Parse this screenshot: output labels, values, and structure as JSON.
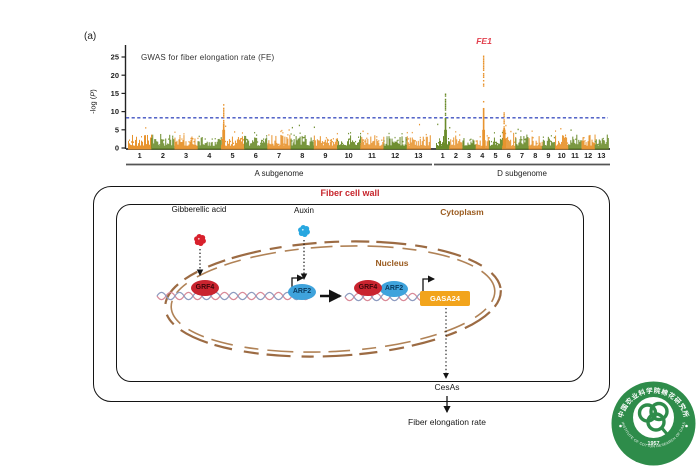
{
  "panel_label": "(a)",
  "chart_data": {
    "type": "scatter",
    "subtype": "manhattan",
    "title": "GWAS for fiber elongation rate (FE)",
    "ylabel": "-log (P)",
    "ylabel_parts": {
      "prefix": "-log (",
      "italic": "P",
      "suffix": ")"
    },
    "ylim": [
      0,
      27
    ],
    "yticks": [
      0,
      5,
      10,
      15,
      20,
      25
    ],
    "threshold_y": 8.3,
    "threshold_style": "dashed",
    "threshold_color": "#3F51C1",
    "point_colors_alternating": [
      "#E8942F",
      "#6A8B2A"
    ],
    "annotation_color": "#E2404E",
    "baseline_noise_max": 5,
    "groups": [
      {
        "label": "A subgenome",
        "chromosomes": [
          "1",
          "2",
          "3",
          "4",
          "5",
          "6",
          "7",
          "8",
          "9",
          "10",
          "11",
          "12",
          "13"
        ]
      },
      {
        "label": "D subgenome",
        "chromosomes": [
          "1",
          "2",
          "3",
          "4",
          "5",
          "6",
          "7",
          "8",
          "9",
          "10",
          "11",
          "12",
          "13"
        ]
      }
    ],
    "peaks": [
      {
        "group": "A subgenome",
        "chromosome": "5",
        "top_value": 12.3,
        "position_frac": 0.12,
        "label": ""
      },
      {
        "group": "D subgenome",
        "chromosome": "1",
        "top_value": 15.0,
        "position_frac": 0.72,
        "label": ""
      },
      {
        "group": "D subgenome",
        "chromosome": "4",
        "top_value": 25.5,
        "position_frac": 0.6,
        "label": "FE1"
      },
      {
        "group": "D subgenome",
        "chromosome": "6",
        "top_value": 10.0,
        "position_frac": 0.15,
        "label": ""
      }
    ]
  },
  "diagram": {
    "cell_wall_title": "Fiber cell wall",
    "cytoplasm_label": "Cytoplasm",
    "nucleus_label": "Nucleus",
    "gibberellic_acid_label": "Gibberellic acid",
    "auxin_label": "Auxin",
    "grf4_label": "GRF4",
    "arf2_label": "ARF2",
    "gasa24_label": "GASA24",
    "cesas_label": "CesAs",
    "output_label": "Fiber elongation rate",
    "colors": {
      "cell_wall_title": "#C7252C",
      "compartment_label": "#9A5B1F",
      "grf4_fill": "#C9242F",
      "grf4_text": "#3d060a",
      "arf2_fill": "#3FA3DC",
      "arf2_text": "#0a3a5e",
      "gasa24_fill": "#F2A41C",
      "nucleus_envelope": "#9C6B43",
      "gibberellic_icon": "#D8202C",
      "auxin_icon": "#28A7E0",
      "dna_strand_1": "#D98A98",
      "dna_strand_2": "#8E9BBF"
    }
  },
  "logo": {
    "chinese_text": "中国农业科学院棉花研究所",
    "english_text": "INSTITUTE OF COTTON RESEARCH OF CAAS",
    "year": "1957",
    "color": "#2E8C4A"
  }
}
